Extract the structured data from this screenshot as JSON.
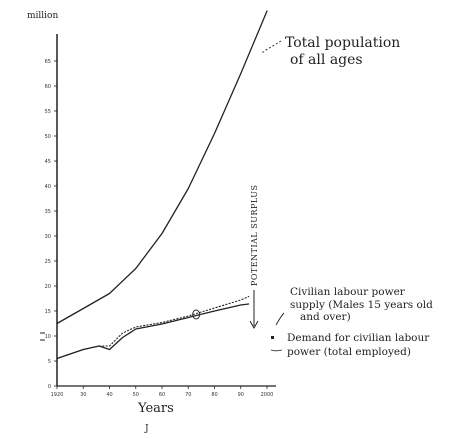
{
  "chart_data": {
    "type": "line",
    "ylabel": "million",
    "xlabel": "Years",
    "xlim": [
      1920,
      2000
    ],
    "ylim": [
      0,
      70
    ],
    "x_ticks": [
      1920,
      1930,
      1940,
      1950,
      1960,
      1970,
      1980,
      1990,
      2000
    ],
    "x_tick_labels": [
      "1920",
      "30",
      "40",
      "50",
      "60",
      "70",
      "80",
      "90",
      "2000"
    ],
    "y_ticks": [
      0,
      5,
      10,
      15,
      20,
      25,
      30,
      35,
      40,
      45,
      50,
      55,
      60,
      65
    ],
    "y_tick_labels": [
      "0",
      "5",
      "10",
      "15",
      "20",
      "25",
      "30",
      "35",
      "40",
      "45",
      "50",
      "55",
      "60",
      "65"
    ],
    "grid": false,
    "series": [
      {
        "name": "Total population of all ages",
        "style": "solid",
        "x": [
          1920,
          1930,
          1940,
          1950,
          1960,
          1970,
          1980,
          1990,
          2000
        ],
        "y": [
          12.5,
          15.5,
          18.5,
          23.5,
          30.5,
          39.5,
          50.5,
          62.5,
          75
        ]
      },
      {
        "name": "Civilian labour power supply (Males 15 years old and over)",
        "style": "dotted",
        "x": [
          1920,
          1930,
          1936,
          1940,
          1945,
          1950,
          1960,
          1970,
          1980,
          1990,
          1993
        ],
        "y": [
          5.5,
          7.3,
          8.0,
          8.0,
          10.6,
          11.8,
          12.7,
          14.0,
          15.6,
          17.2,
          17.9
        ]
      },
      {
        "name": "Demand for civilian labour power (total employed)",
        "style": "solid",
        "x": [
          1920,
          1930,
          1936,
          1940,
          1945,
          1950,
          1960,
          1970,
          1980,
          1990,
          1993
        ],
        "y": [
          5.5,
          7.3,
          8.0,
          7.3,
          9.7,
          11.4,
          12.4,
          13.7,
          15.0,
          16.2,
          16.4
        ]
      }
    ],
    "annotations": {
      "total": [
        "Total population",
        "of all ages"
      ],
      "supply": [
        "Civilian labour power",
        "supply (Males 15 years old",
        "and over)"
      ],
      "demand": [
        "Demand for civilian labour",
        "power (total employed)"
      ],
      "surplus": "POTENTIAL SURPLUS"
    },
    "footer": "J"
  },
  "colors": {
    "ink": "#222222"
  }
}
